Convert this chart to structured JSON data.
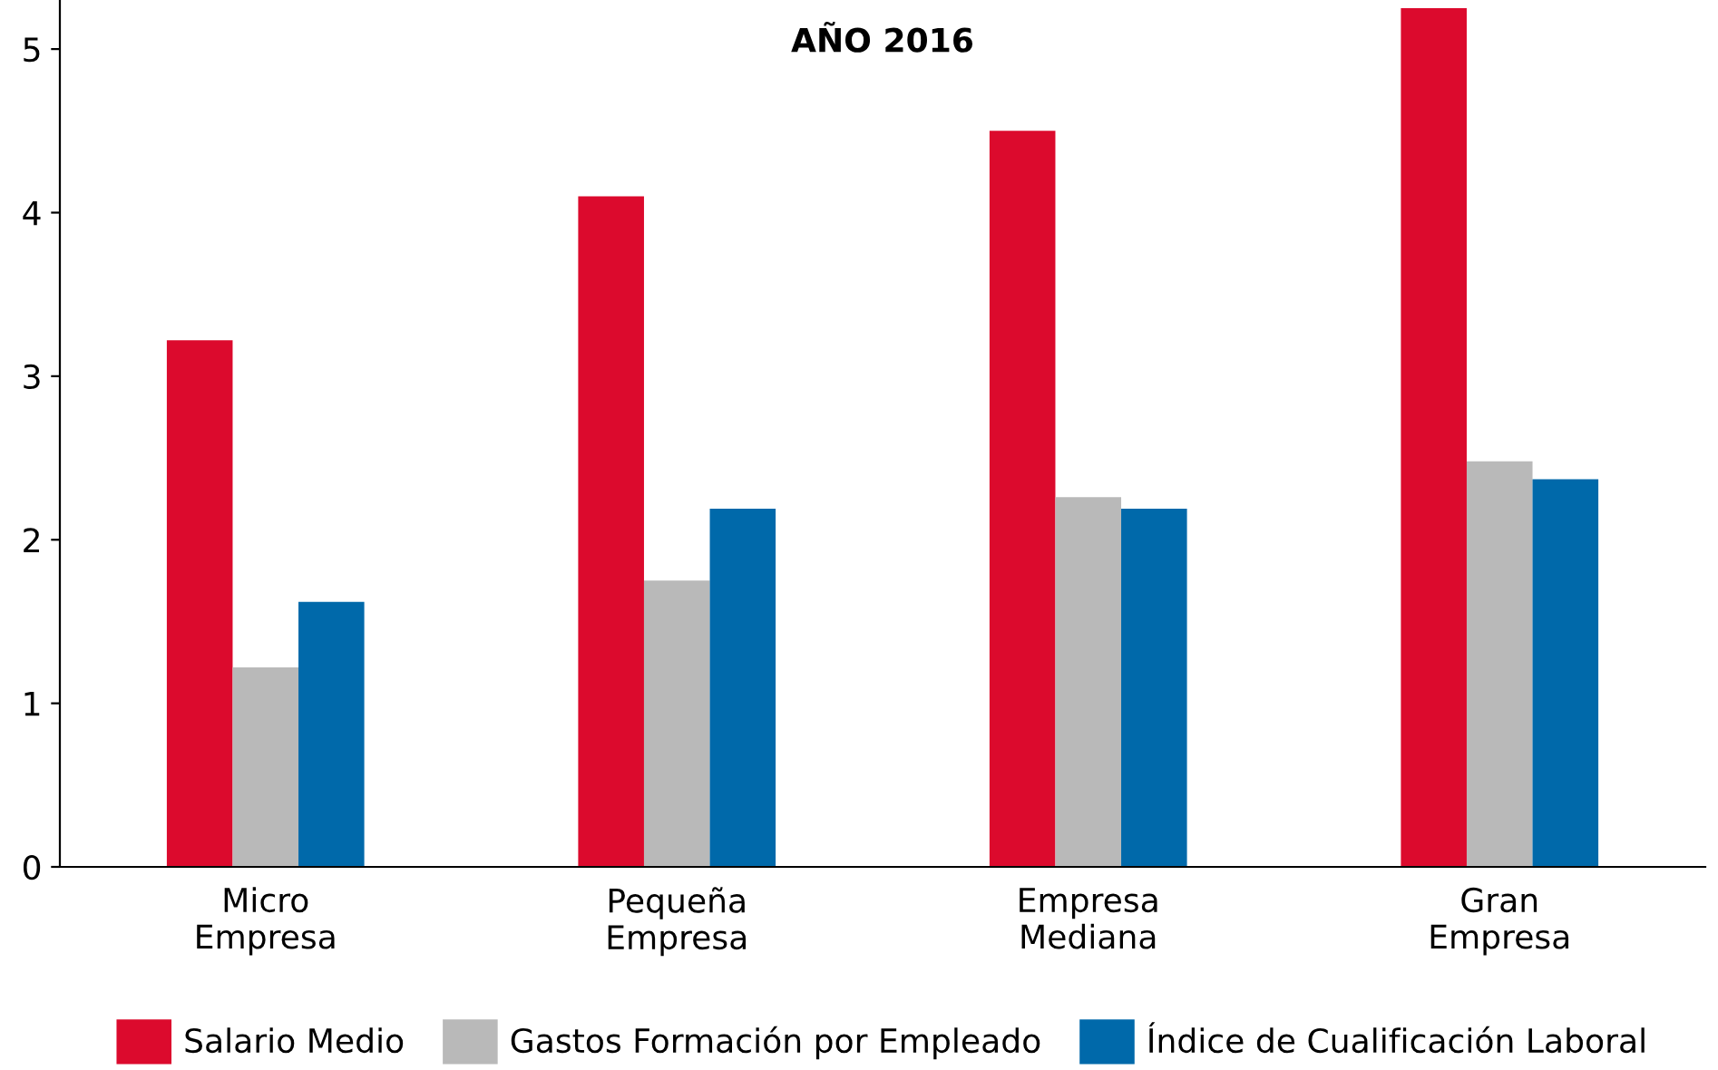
{
  "chart_data": {
    "type": "bar",
    "title": "AÑO 2016",
    "categories": [
      "Micro\nEmpresa",
      "Pequeña\nEmpresa",
      "Empresa\nMediana",
      "Gran\nEmpresa"
    ],
    "series": [
      {
        "name": "Salario Medio",
        "color": "#dc0a2d",
        "values": [
          3.22,
          4.1,
          4.5,
          5.25
        ]
      },
      {
        "name": "Gastos Formación por Empleado",
        "color": "#b9b9b9",
        "values": [
          1.22,
          1.75,
          2.26,
          2.48
        ]
      },
      {
        "name": "Índice de Cualificación Laboral",
        "color": "#0069aa",
        "values": [
          1.62,
          2.19,
          2.19,
          2.37
        ]
      }
    ],
    "ylim": [
      0,
      5.3
    ],
    "yticks": [
      0,
      1,
      2,
      3,
      4,
      5
    ],
    "grid": false,
    "legend": "bottom"
  }
}
